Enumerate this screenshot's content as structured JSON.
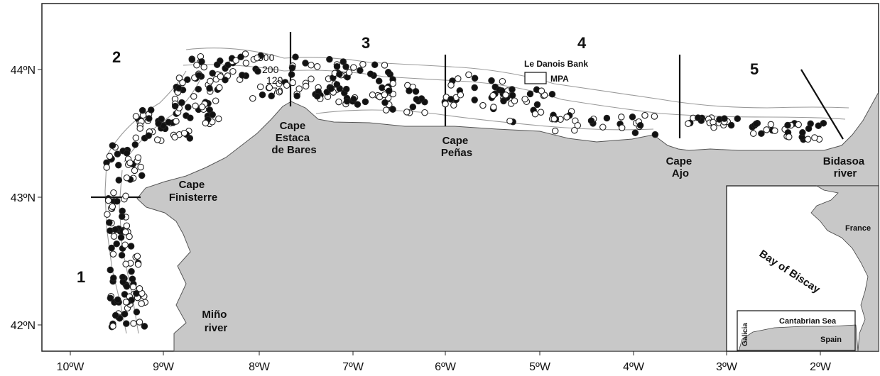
{
  "axes": {
    "lon_ticks": [
      "10ºW",
      "9ºW",
      "8ºW",
      "7ºW",
      "6ºW",
      "5ºW",
      "4ºW",
      "3ºW",
      "2ºW"
    ],
    "lat_ticks": [
      "44ºN",
      "43ºN",
      "42ºN"
    ]
  },
  "zones": [
    "1",
    "2",
    "3",
    "4",
    "5"
  ],
  "places": {
    "finisterre": [
      "Cape",
      "Finisterre"
    ],
    "estaca": [
      "Cape",
      "Estaca",
      "de Bares"
    ],
    "penas": [
      "Cape",
      "Peñas"
    ],
    "ajo": [
      "Cape",
      "Ajo"
    ],
    "bidasoa": [
      "Bidasoa",
      "river"
    ],
    "mino": [
      "Miño",
      "river"
    ]
  },
  "depth_labels": [
    "500",
    "200",
    "120",
    "70"
  ],
  "legend": {
    "title": "Le Danois Bank",
    "mpa": "MPA"
  },
  "inset": {
    "bay": "Bay of Biscay",
    "france": "France",
    "spain": "Spain",
    "cantabrian": "Cantabrian Sea",
    "galicia": "Galicia"
  },
  "colors": {
    "land": "#c8c8c8",
    "sea": "#ffffff",
    "isobath": "#9a9a9a",
    "filled_station": "#111111",
    "open_station": "#ffffff"
  }
}
